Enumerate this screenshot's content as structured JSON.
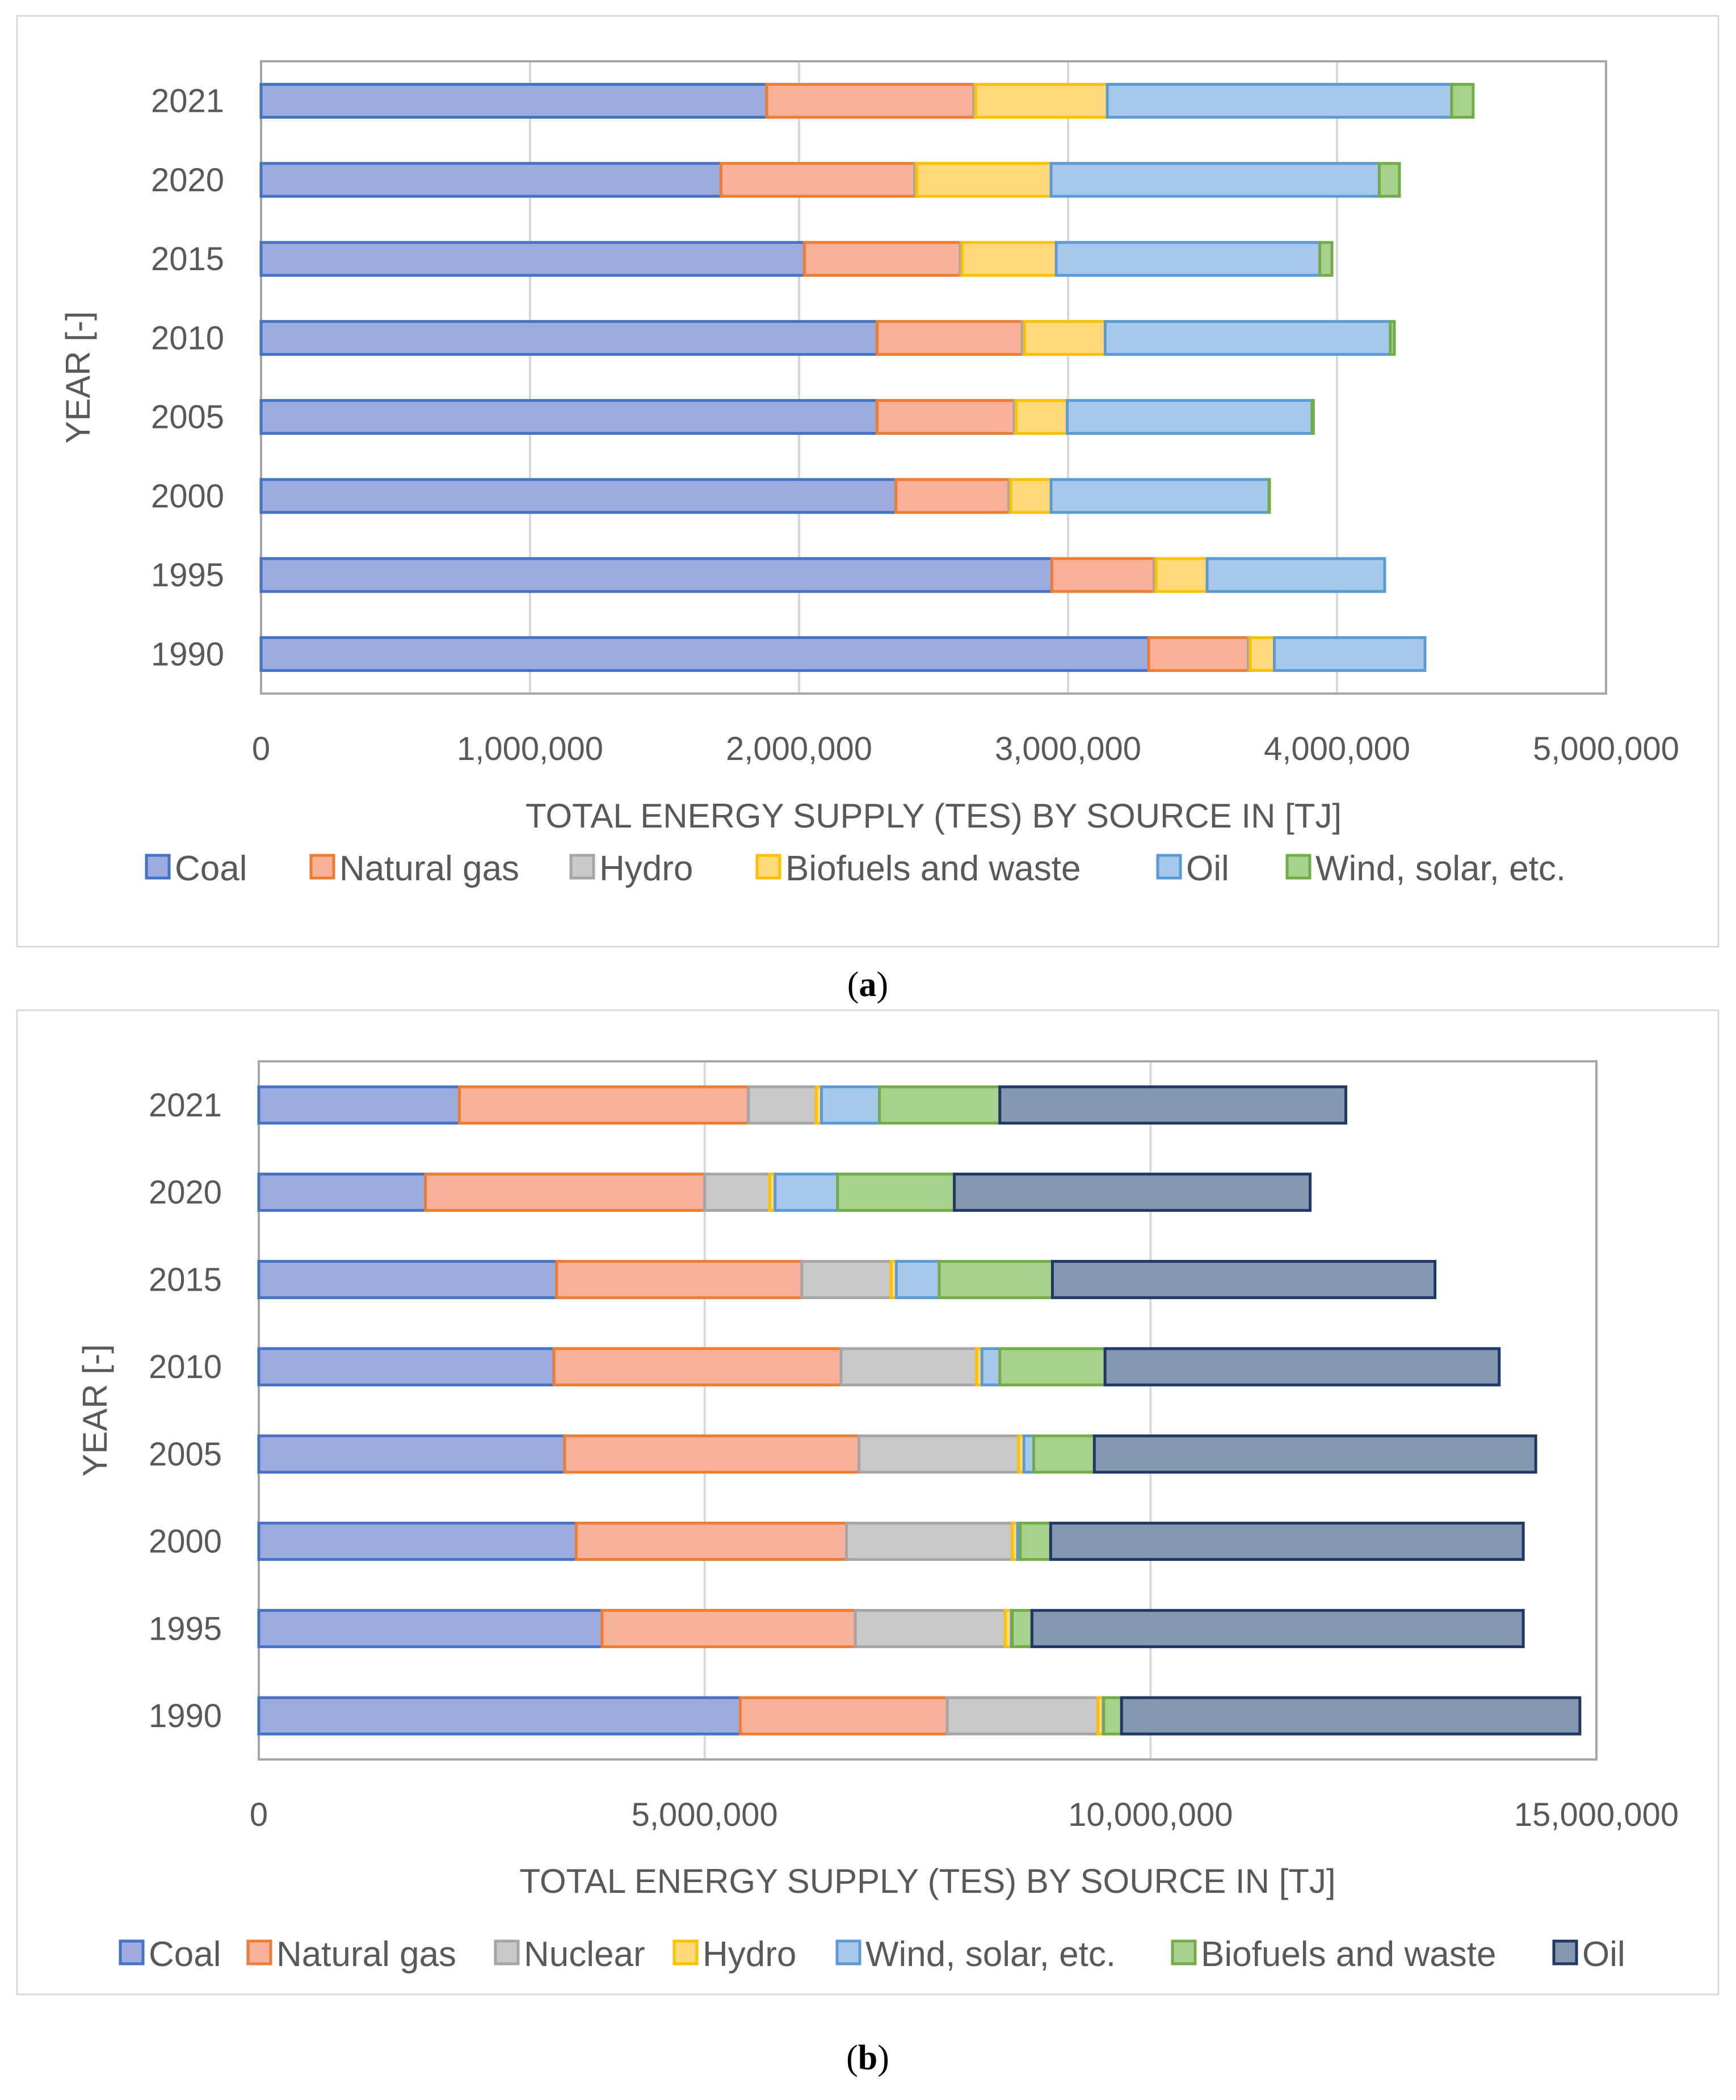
{
  "chart_data": [
    {
      "type": "bar",
      "orientation": "horizontal",
      "stacked": true,
      "caption": "a",
      "categories": [
        "1990",
        "1995",
        "2000",
        "2005",
        "2010",
        "2015",
        "2020",
        "2021"
      ],
      "xlabel": "TOTAL ENERGY SUPPLY (TES) BY SOURCE IN [TJ]",
      "ylabel": "YEAR [-]",
      "xlim": [
        0,
        5000000
      ],
      "xticks": [
        0,
        1000000,
        2000000,
        3000000,
        4000000,
        5000000
      ],
      "xtick_labels": [
        "0",
        "1,000,000",
        "2,000,000",
        "3,000,000",
        "4,000,000",
        "5,000,000"
      ],
      "grid": "vertical",
      "legend_position": "bottom",
      "series": [
        {
          "name": "Coal",
          "fill": "#9dabde",
          "stroke": "#4472c4",
          "values": [
            3300000,
            2940000,
            2360000,
            2290000,
            2290000,
            2020000,
            1710000,
            1880000
          ]
        },
        {
          "name": "Natural gas",
          "fill": "#f7b19b",
          "stroke": "#ed7d31",
          "values": [
            370000,
            380000,
            420000,
            510000,
            540000,
            580000,
            720000,
            770000
          ]
        },
        {
          "name": "Hydro",
          "fill": "#c9c9c9",
          "stroke": "#a5a5a5",
          "values": [
            7000,
            7000,
            7000,
            7000,
            8000,
            6000,
            7000,
            6000
          ]
        },
        {
          "name": "Biofuels and waste",
          "fill": "#ffd97a",
          "stroke": "#ffc000",
          "values": [
            90000,
            190000,
            150000,
            190000,
            300000,
            350000,
            500000,
            490000
          ]
        },
        {
          "name": "Oil",
          "fill": "#a7c8ea",
          "stroke": "#5b9bd5",
          "values": [
            560000,
            660000,
            810000,
            910000,
            1060000,
            980000,
            1220000,
            1280000
          ]
        },
        {
          "name": "Wind, solar, etc.",
          "fill": "#a9d18e",
          "stroke": "#70ad47",
          "values": [
            0,
            0,
            2000,
            5000,
            15000,
            45000,
            75000,
            80000
          ]
        }
      ]
    },
    {
      "type": "bar",
      "orientation": "horizontal",
      "stacked": true,
      "caption": "b",
      "categories": [
        "1990",
        "1995",
        "2000",
        "2005",
        "2010",
        "2015",
        "2020",
        "2021"
      ],
      "xlabel": "TOTAL ENERGY SUPPLY (TES) BY SOURCE IN [TJ]",
      "ylabel": "YEAR [-]",
      "xlim": [
        0,
        15000000
      ],
      "xticks": [
        0,
        5000000,
        10000000,
        15000000
      ],
      "xtick_labels": [
        "0",
        "5,000,000",
        "10,000,000",
        "15,000,000"
      ],
      "grid": "vertical",
      "legend_position": "bottom",
      "series": [
        {
          "name": "Coal",
          "fill": "#9dabde",
          "stroke": "#4472c4",
          "values": [
            5400000,
            3850000,
            3560000,
            3430000,
            3310000,
            3340000,
            1870000,
            2250000
          ]
        },
        {
          "name": "Natural gas",
          "fill": "#f7b19b",
          "stroke": "#ed7d31",
          "values": [
            2320000,
            2840000,
            3030000,
            3300000,
            3220000,
            2750000,
            3130000,
            3240000
          ]
        },
        {
          "name": "Nuclear",
          "fill": "#c9c9c9",
          "stroke": "#a5a5a5",
          "values": [
            1690000,
            1680000,
            1860000,
            1790000,
            1520000,
            1000000,
            730000,
            760000
          ]
        },
        {
          "name": "Hydro",
          "fill": "#ffd97a",
          "stroke": "#ffc000",
          "values": [
            60000,
            70000,
            60000,
            60000,
            60000,
            60000,
            60000,
            60000
          ]
        },
        {
          "name": "Wind, solar, etc.",
          "fill": "#a7c8ea",
          "stroke": "#5b9bd5",
          "values": [
            5000,
            10000,
            30000,
            110000,
            200000,
            480000,
            700000,
            650000
          ]
        },
        {
          "name": "Biofuels and waste",
          "fill": "#a9d18e",
          "stroke": "#70ad47",
          "values": [
            200000,
            220000,
            340000,
            680000,
            1180000,
            1270000,
            1310000,
            1350000
          ]
        },
        {
          "name": "Oil",
          "fill": "#8496b0",
          "stroke": "#203864",
          "values": [
            5140000,
            5510000,
            5300000,
            4950000,
            4420000,
            4290000,
            3990000,
            3880000
          ]
        }
      ]
    }
  ]
}
